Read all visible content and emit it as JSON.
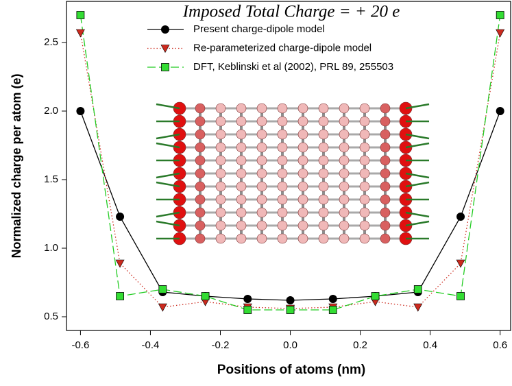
{
  "chart_data": {
    "type": "line",
    "title": "Imposed Total Charge =  + 20 e",
    "x_label": "Positions of atoms (nm)",
    "y_label": "Normalized charge per atom (e)",
    "x": [
      -0.6,
      -0.487,
      -0.365,
      -0.243,
      -0.122,
      0,
      0.122,
      0.243,
      0.365,
      0.487,
      0.6
    ],
    "series": [
      {
        "name": "Present charge-dipole model",
        "color": "#000000",
        "marker": "circle",
        "dash": "solid",
        "values": [
          2.0,
          1.23,
          0.68,
          0.65,
          0.63,
          0.62,
          0.63,
          0.65,
          0.68,
          1.23,
          2.0
        ]
      },
      {
        "name": "Re-parameterized charge-dipole model",
        "color": "#cc2a1e",
        "marker": "triangle-down",
        "dash": "dotted",
        "values": [
          2.57,
          0.89,
          0.57,
          0.61,
          0.57,
          0.56,
          0.57,
          0.61,
          0.57,
          0.89,
          2.57
        ]
      },
      {
        "name": "DFT, Keblinski et al (2002), PRL 89, 255503",
        "color": "#22cc22",
        "marker": "square",
        "dash": "dashed",
        "values": [
          2.7,
          0.65,
          0.7,
          0.65,
          0.55,
          0.55,
          0.55,
          0.65,
          0.7,
          0.65,
          2.7
        ]
      }
    ],
    "xlim": [
      -0.64,
      0.63
    ],
    "ylim": [
      0.4,
      2.8
    ],
    "xticks": [
      {
        "value": -0.6,
        "label": "-0.6"
      },
      {
        "value": -0.4,
        "label": "-0.4"
      },
      {
        "value": -0.2,
        "label": "-0.2"
      },
      {
        "value": 0,
        "label": "0.0"
      },
      {
        "value": 0.2,
        "label": "0.2"
      },
      {
        "value": 0.4,
        "label": "0.4"
      },
      {
        "value": 0.6,
        "label": "0.6"
      }
    ],
    "yticks": [
      0.5,
      {
        "value": 1,
        "label": "1.0"
      },
      1.5,
      {
        "value": 2,
        "label": "2.0"
      },
      2.5
    ]
  }
}
